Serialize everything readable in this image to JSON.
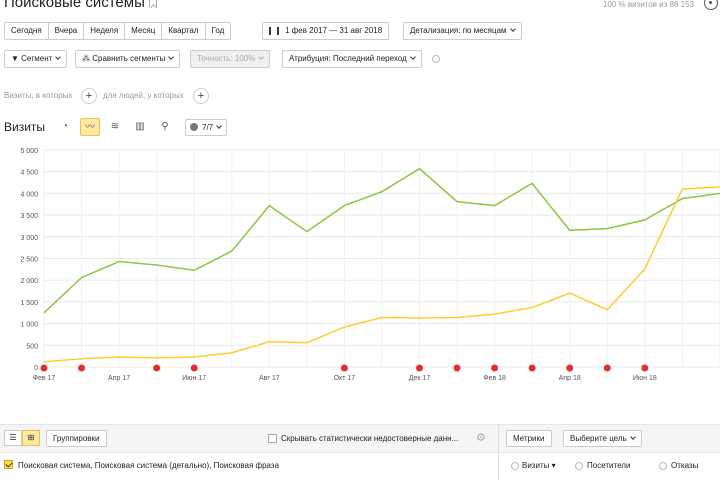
{
  "page": {
    "title": "Поисковые системы",
    "visits_info": "100 % визитов из 86 153"
  },
  "periods": [
    "Сегодня",
    "Вчера",
    "Неделя",
    "Месяц",
    "Квартал",
    "Год"
  ],
  "date_range": "1 фев 2017 — 31 авг 2018",
  "detail": "Детализация: по месяцам",
  "toolbar": {
    "segment": "Сегмент",
    "compare": "Сравнить сегменты",
    "accuracy": "Точность: 100%",
    "attribution": "Атрибуция: Последний переход"
  },
  "filters": {
    "visits_where": "Визиты, в которых",
    "for_people": "для людей, у которых"
  },
  "chart_header": {
    "label": "Визиты",
    "series_count": "7/7"
  },
  "chart_data": {
    "type": "line",
    "x": [
      "Фев 17",
      "Мар 17",
      "Апр 17",
      "Май 17",
      "Июн 17",
      "Июл 17",
      "Авг 17",
      "Сен 17",
      "Окт 17",
      "Ноя 17",
      "Дек 17",
      "Янв 18",
      "Фев 18",
      "Мар 18",
      "Апр 18",
      "Май 18",
      "Июн 18",
      "Июл 18",
      "Авг 18"
    ],
    "tick_labels": [
      "Фев 17",
      "Апр 17",
      "Июн 17",
      "Авг 17",
      "Окт 17",
      "Дек 17",
      "Фев 18",
      "Апр 18",
      "Июн 18"
    ],
    "ylim": [
      0,
      5000
    ],
    "y_ticks": [
      "5 000",
      "4 500",
      "4 000",
      "3 500",
      "3 000",
      "2 500",
      "2 000",
      "1 500",
      "1 000",
      "500",
      "0"
    ],
    "grid": true,
    "series": [
      {
        "color": "#8dc63f",
        "values": [
          1250,
          2060,
          2430,
          2350,
          2230,
          2670,
          3720,
          3120,
          3720,
          4040,
          4570,
          3810,
          3720,
          4230,
          3150,
          3190,
          3390,
          3880,
          4000
        ]
      },
      {
        "color": "#ffcc33",
        "values": [
          120,
          190,
          230,
          210,
          230,
          330,
          580,
          560,
          920,
          1140,
          1130,
          1140,
          1220,
          1370,
          1700,
          1320,
          2260,
          4100,
          4150
        ]
      }
    ],
    "annotation_markers": [
      "Фев 17",
      "Мар 17",
      "Май 17",
      "Июн 17",
      "Окт 17",
      "Дек 17",
      "Янв 18",
      "Фев 18",
      "Мар 18",
      "Апр 18",
      "Май 18",
      "Июн 18"
    ]
  },
  "bottom": {
    "groupings": "Группировки",
    "hide_unreliable": "Скрывать статистически недостоверные данн...",
    "metrics": "Метрики",
    "choose_goal": "Выберите цель",
    "dimension_row": "Поисковая система, Поисковая система (детально), Поисковая фраза",
    "col_visits": "Визиты",
    "col_visitors": "Посетители",
    "col_bounces": "Отказы"
  },
  "colors": {
    "accent": "#ffdb4d",
    "green_series": "#8dc63f",
    "yellow_series": "#ffcc33",
    "marker": "#e03030"
  }
}
